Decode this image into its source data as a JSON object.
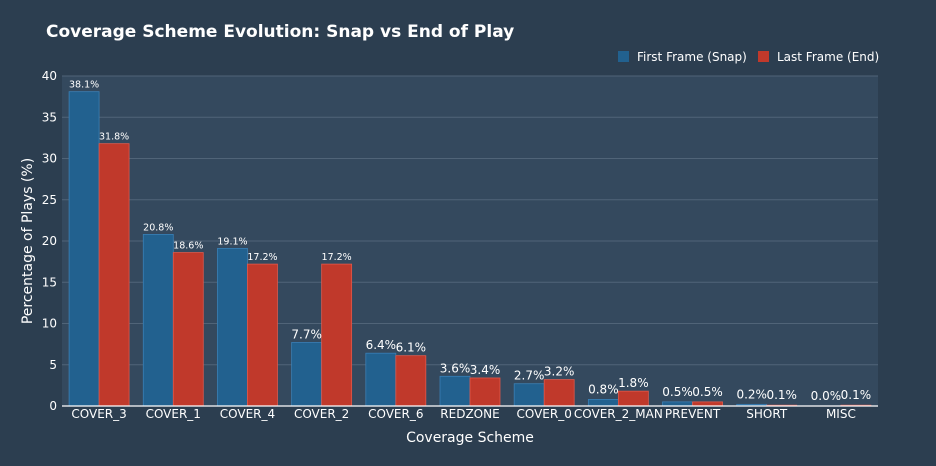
{
  "chart_data": {
    "type": "bar",
    "title": "Coverage Scheme Evolution: Snap vs End of Play",
    "xlabel": "Coverage Scheme",
    "ylabel": "Percentage of Plays (%)",
    "ylim": [
      0,
      40
    ],
    "yticks": [
      0,
      5,
      10,
      15,
      20,
      25,
      30,
      35,
      40
    ],
    "grid": true,
    "legend_position": "top-right",
    "categories": [
      "COVER_3",
      "COVER_1",
      "COVER_4",
      "COVER_2",
      "COVER_6",
      "REDZONE",
      "COVER_0",
      "COVER_2_MAN",
      "PREVENT",
      "SHORT",
      "MISC"
    ],
    "series": [
      {
        "name": "First Frame (Snap)",
        "color": "#22618f",
        "values": [
          38.1,
          20.8,
          19.1,
          7.7,
          6.4,
          3.6,
          2.7,
          0.8,
          0.5,
          0.2,
          0.0
        ],
        "labels": [
          "38.1%",
          "20.8%",
          "19.1%",
          "7.7%",
          "6.4%",
          "3.6%",
          "2.7%",
          "0.8%",
          "0.5%",
          "0.2%",
          "0.0%"
        ]
      },
      {
        "name": "Last Frame (End)",
        "color": "#c0392b",
        "values": [
          31.8,
          18.6,
          17.2,
          17.2,
          6.1,
          3.4,
          3.2,
          1.8,
          0.5,
          0.1,
          0.1
        ],
        "labels": [
          "31.8%",
          "18.6%",
          "17.2%",
          "17.2%",
          "6.1%",
          "3.4%",
          "3.2%",
          "1.8%",
          "0.5%",
          "0.1%",
          "0.1%"
        ]
      }
    ]
  }
}
